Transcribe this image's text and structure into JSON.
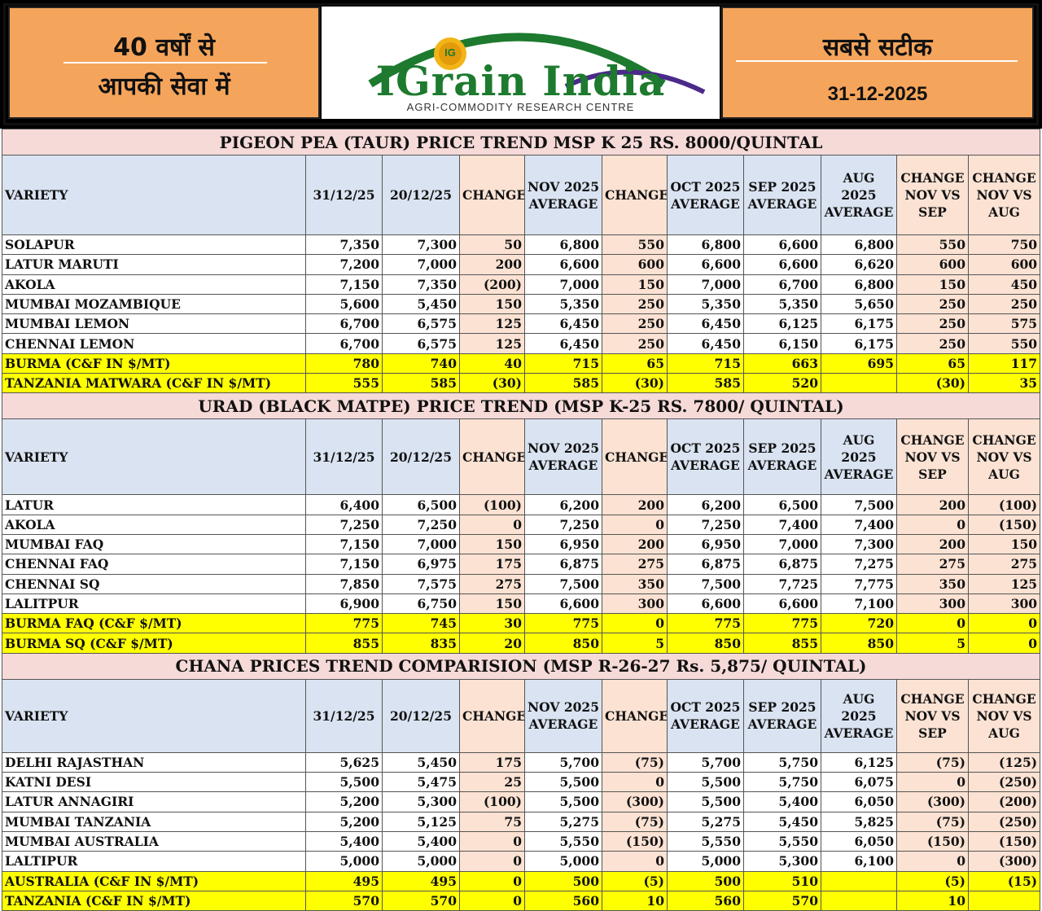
{
  "header": {
    "left_line1": "40 वर्षों से",
    "left_line2": "आपकी सेवा में",
    "logo_title": "IGrain India",
    "logo_subtitle": "AGRI-COMMODITY RESEARCH CENTRE",
    "logo_badge": "IG",
    "right_title": "सबसे सटीक",
    "date": "31-12-2025"
  },
  "columns": [
    "VARIETY",
    "31/12/25",
    "20/12/25",
    "CHANGE",
    "NOV 2025 AVERAGE",
    "CHANGE",
    "OCT 2025 AVERAGE",
    "SEP 2025 AVERAGE",
    "AUG 2025 AVERAGE",
    "CHANGE NOV VS SEP",
    "CHANGE NOV VS AUG"
  ],
  "colors": {
    "positive": "#1da01d",
    "negative": "#e00000",
    "highlight": "#ffff00",
    "title_bg": "#f6dad8",
    "header_bg": "#d9e3f1",
    "change_bg": "#fbe2d3",
    "header_orange": "#f5a55b"
  },
  "sections": [
    {
      "title": "PIGEON PEA (TAUR) PRICE TREND MSP K 25 RS. 8000/QUINTAL",
      "rows": [
        {
          "variety": "SOLAPUR",
          "values": [
            "7,350",
            "7,300",
            "50",
            "6,800",
            "550",
            "6,800",
            "6,600",
            "6,800",
            "550",
            "750"
          ],
          "yellow": false
        },
        {
          "variety": "LATUR MARUTI",
          "values": [
            "7,200",
            "7,000",
            "200",
            "6,600",
            "600",
            "6,600",
            "6,600",
            "6,620",
            "600",
            "600"
          ],
          "yellow": false
        },
        {
          "variety": "AKOLA",
          "values": [
            "7,150",
            "7,350",
            "(200)",
            "7,000",
            "150",
            "7,000",
            "6,700",
            "6,800",
            "150",
            "450"
          ],
          "yellow": false
        },
        {
          "variety": "MUMBAI MOZAMBIQUE",
          "values": [
            "5,600",
            "5,450",
            "150",
            "5,350",
            "250",
            "5,350",
            "5,350",
            "5,650",
            "250",
            "250"
          ],
          "yellow": false
        },
        {
          "variety": "MUMBAI LEMON",
          "values": [
            "6,700",
            "6,575",
            "125",
            "6,450",
            "250",
            "6,450",
            "6,125",
            "6,175",
            "250",
            "575"
          ],
          "yellow": false
        },
        {
          "variety": "CHENNAI LEMON",
          "values": [
            "6,700",
            "6,575",
            "125",
            "6,450",
            "250",
            "6,450",
            "6,150",
            "6,175",
            "250",
            "550"
          ],
          "yellow": false
        },
        {
          "variety": "BURMA (C&F IN $/MT)",
          "values": [
            "780",
            "740",
            "40",
            "715",
            "65",
            "715",
            "663",
            "695",
            "65",
            "117"
          ],
          "yellow": true
        },
        {
          "variety": "TANZANIA MATWARA (C&F IN $/MT)",
          "values": [
            "555",
            "585",
            "(30)",
            "585",
            "(30)",
            "585",
            "520",
            "",
            "(30)",
            "35"
          ],
          "yellow": true
        }
      ]
    },
    {
      "title": "URAD (BLACK MATPE) PRICE TREND (MSP K-25 RS. 7800/ QUINTAL)",
      "rows": [
        {
          "variety": "LATUR",
          "values": [
            "6,400",
            "6,500",
            "(100)",
            "6,200",
            "200",
            "6,200",
            "6,500",
            "7,500",
            "200",
            "(100)"
          ],
          "yellow": false
        },
        {
          "variety": "AKOLA",
          "values": [
            "7,250",
            "7,250",
            "0",
            "7,250",
            "0",
            "7,250",
            "7,400",
            "7,400",
            "0",
            "(150)"
          ],
          "yellow": false
        },
        {
          "variety": "MUMBAI FAQ",
          "values": [
            "7,150",
            "7,000",
            "150",
            "6,950",
            "200",
            "6,950",
            "7,000",
            "7,300",
            "200",
            "150"
          ],
          "yellow": false
        },
        {
          "variety": "CHENNAI FAQ",
          "values": [
            "7,150",
            "6,975",
            "175",
            "6,875",
            "275",
            "6,875",
            "6,875",
            "7,275",
            "275",
            "275"
          ],
          "yellow": false
        },
        {
          "variety": "CHENNAI SQ",
          "values": [
            "7,850",
            "7,575",
            "275",
            "7,500",
            "350",
            "7,500",
            "7,725",
            "7,775",
            "350",
            "125"
          ],
          "yellow": false
        },
        {
          "variety": "LALITPUR",
          "values": [
            "6,900",
            "6,750",
            "150",
            "6,600",
            "300",
            "6,600",
            "6,600",
            "7,100",
            "300",
            "300"
          ],
          "yellow": false
        },
        {
          "variety": "BURMA FAQ (C&F $/MT)",
          "values": [
            "775",
            "745",
            "30",
            "775",
            "0",
            "775",
            "775",
            "720",
            "0",
            "0"
          ],
          "yellow": true
        },
        {
          "variety": "BURMA SQ (C&F $/MT)",
          "values": [
            "855",
            "835",
            "20",
            "850",
            "5",
            "850",
            "855",
            "850",
            "5",
            "0"
          ],
          "yellow": true
        }
      ]
    },
    {
      "title": "CHANA PRICES TREND COMPARISION (MSP R-26-27 Rs. 5,875/ QUINTAL)",
      "rows": [
        {
          "variety": "DELHI RAJASTHAN",
          "values": [
            "5,625",
            "5,450",
            "175",
            "5,700",
            "(75)",
            "5,700",
            "5,750",
            "6,125",
            "(75)",
            "(125)"
          ],
          "yellow": false
        },
        {
          "variety": "KATNI DESI",
          "values": [
            "5,500",
            "5,475",
            "25",
            "5,500",
            "0",
            "5,500",
            "5,750",
            "6,075",
            "0",
            "(250)"
          ],
          "yellow": false
        },
        {
          "variety": "LATUR ANNAGIRI",
          "values": [
            "5,200",
            "5,300",
            "(100)",
            "5,500",
            "(300)",
            "5,500",
            "5,400",
            "6,050",
            "(300)",
            "(200)"
          ],
          "yellow": false
        },
        {
          "variety": "MUMBAI TANZANIA",
          "values": [
            "5,200",
            "5,125",
            "75",
            "5,275",
            "(75)",
            "5,275",
            "5,450",
            "5,825",
            "(75)",
            "(250)"
          ],
          "yellow": false
        },
        {
          "variety": "MUMBAI AUSTRALIA",
          "values": [
            "5,400",
            "5,400",
            "0",
            "5,550",
            "(150)",
            "5,550",
            "5,550",
            "6,050",
            "(150)",
            "(150)"
          ],
          "yellow": false
        },
        {
          "variety": "LALTIPUR",
          "values": [
            "5,000",
            "5,000",
            "0",
            "5,000",
            "0",
            "5,000",
            "5,300",
            "6,100",
            "0",
            "(300)"
          ],
          "yellow": false
        },
        {
          "variety": "AUSTRALIA (C&F IN $/MT)",
          "values": [
            "495",
            "495",
            "0",
            "500",
            "(5)",
            "500",
            "510",
            "",
            "(5)",
            "(15)"
          ],
          "yellow": true
        },
        {
          "variety": "TANZANIA (C&F IN $/MT)",
          "values": [
            "570",
            "570",
            "0",
            "560",
            "10",
            "560",
            "570",
            "",
            "10",
            ""
          ],
          "yellow": true
        }
      ]
    }
  ]
}
